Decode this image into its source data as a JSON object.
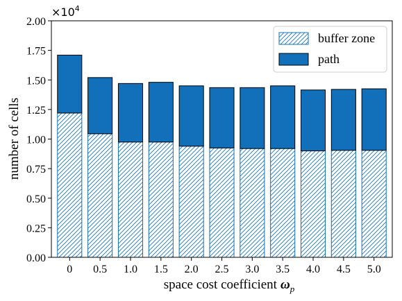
{
  "chart_data": {
    "type": "bar",
    "stacked": true,
    "categories": [
      "0",
      "0.5",
      "1.0",
      "1.5",
      "2.0",
      "2.5",
      "3.0",
      "3.5",
      "4.0",
      "4.5",
      "5.0"
    ],
    "series": [
      {
        "name": "buffer zone",
        "values": [
          12200,
          10450,
          9750,
          9750,
          9400,
          9250,
          9200,
          9200,
          9000,
          9050,
          9050
        ]
      },
      {
        "name": "path",
        "values": [
          4900,
          4750,
          4950,
          5050,
          5100,
          5100,
          5150,
          5300,
          5150,
          5150,
          5200
        ]
      }
    ],
    "xlabel": "space cost coefficient",
    "xlabel_symbol": "ω",
    "xlabel_subscript": "p",
    "ylabel": "number of cells",
    "ylim": [
      0,
      20000
    ],
    "yticks": [
      "0.00",
      "0.25",
      "0.50",
      "0.75",
      "1.00",
      "1.25",
      "1.50",
      "1.75",
      "2.00"
    ],
    "y_multiplier_base": "×10",
    "y_multiplier_exp": "4",
    "legend_position": "upper right",
    "grid": false,
    "colors": {
      "path": "#1170b9",
      "buffer_hatch": "#1170b9",
      "edge": "#000000"
    }
  }
}
